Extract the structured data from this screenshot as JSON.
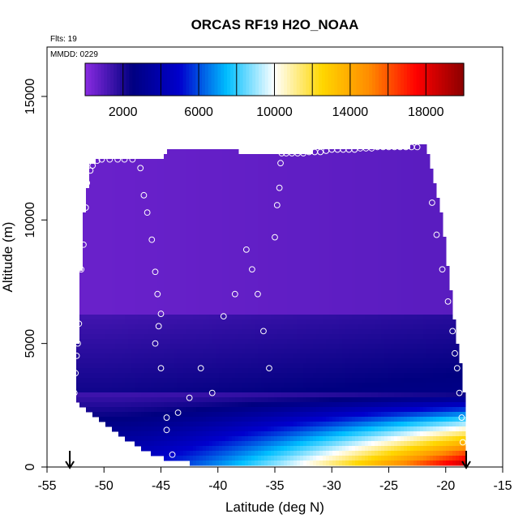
{
  "chart_data": {
    "type": "heatmap",
    "title": "ORCAS RF19 H2O_NOAA",
    "xlabel": "Latitude (deg N)",
    "ylabel": "Altitude (m)",
    "annotations": [
      "Flts: 19",
      "MMDD: 0229"
    ],
    "xlim": [
      -55,
      -15
    ],
    "ylim": [
      0,
      17000
    ],
    "x_ticks": [
      -55,
      -50,
      -45,
      -40,
      -35,
      -30,
      -25,
      -20,
      -15
    ],
    "y_ticks": [
      0,
      5000,
      10000,
      15000
    ],
    "colorbar": {
      "range": [
        0,
        20000
      ],
      "ticks": [
        2000,
        6000,
        10000,
        14000,
        18000
      ],
      "colors": [
        "#8a2be2",
        "#000080",
        "#0000cd",
        "#00bfff",
        "#ffffff",
        "#ffd700",
        "#ff8c00",
        "#ff0000",
        "#8b0000"
      ]
    },
    "domain_outline": [
      [
        -52.5,
        3000
      ],
      [
        -52.0,
        8000
      ],
      [
        -51.7,
        10500
      ],
      [
        -51.2,
        12200
      ],
      [
        -50.3,
        12500
      ],
      [
        -45.0,
        12500
      ],
      [
        -44.5,
        12800
      ],
      [
        -40.0,
        12800
      ],
      [
        -35.0,
        12700
      ],
      [
        -30.0,
        12800
      ],
      [
        -25.0,
        12900
      ],
      [
        -21.8,
        13000
      ],
      [
        -21.2,
        12000
      ],
      [
        -20.3,
        10000
      ],
      [
        -19.8,
        8000
      ],
      [
        -19.4,
        6500
      ],
      [
        -19.0,
        5000
      ],
      [
        -18.6,
        4000
      ],
      [
        -18.3,
        2500
      ],
      [
        -18.2,
        0
      ],
      [
        -35.5,
        0
      ],
      [
        -40.0,
        0
      ],
      [
        -44.5,
        300
      ],
      [
        -47.0,
        800
      ],
      [
        -50.0,
        1800
      ],
      [
        -52.5,
        2700
      ]
    ],
    "profiles": [
      {
        "x": [
          -52.6,
          -52.5,
          -52.4,
          -52.3,
          -52.2,
          -52.0,
          -51.8,
          -51.6,
          -51.5,
          -51.2,
          -51.0,
          -50.6,
          -50.2
        ],
        "y": [
          3000,
          3800,
          4500,
          5000,
          5800,
          8000,
          9000,
          10500,
          11500,
          12000,
          12200,
          12400,
          12450
        ]
      },
      {
        "x": [
          -49.5,
          -48.8,
          -48.2,
          -47.5,
          -46.8,
          -46.5,
          -46.2,
          -45.8,
          -45.5,
          -45.3,
          -45.0,
          -45.2,
          -45.5,
          -45.0,
          -44.5,
          -44.0
        ],
        "y": [
          12450,
          12450,
          12450,
          12450,
          12100,
          11000,
          10300,
          9200,
          7900,
          7000,
          6200,
          5700,
          5000,
          4000,
          2000,
          500
        ]
      },
      {
        "x": [
          -44.5,
          -43.5,
          -42.5,
          -41.5,
          -40.5,
          -39.5,
          -38.5,
          -37.5,
          -37.0,
          -36.5,
          -36.0,
          -35.5
        ],
        "y": [
          1500,
          2200,
          2800,
          4000,
          3000,
          6100,
          7000,
          8800,
          8000,
          7000,
          5500,
          4000
        ]
      },
      {
        "x": [
          -35.0,
          -34.8,
          -34.6,
          -34.5,
          -34.4,
          -34.0,
          -33.5,
          -33.0,
          -32.5,
          -32.0,
          -31.5,
          -31.0,
          -30.5,
          -30.0,
          -29.5,
          -29.0,
          -28.5,
          -28.0,
          -27.5,
          -27.0,
          -26.5,
          -26.0,
          -25.5,
          -25.0,
          -24.5,
          -24.0,
          -23.5,
          -23.0,
          -22.5
        ],
        "y": [
          9300,
          10600,
          11300,
          12300,
          12700,
          12700,
          12700,
          12700,
          12700,
          12750,
          12750,
          12750,
          12800,
          12850,
          12850,
          12850,
          12850,
          12850,
          12900,
          12900,
          12900,
          12950,
          12950,
          12950,
          12950,
          12950,
          12950,
          12950,
          12950
        ]
      },
      {
        "x": [
          -21.2,
          -20.8,
          -20.3,
          -19.8,
          -19.4,
          -19.2,
          -19.0,
          -18.8,
          -18.6,
          -18.5
        ],
        "y": [
          10700,
          9400,
          8000,
          6700,
          5500,
          4600,
          4000,
          3000,
          2000,
          1000
        ]
      }
    ],
    "markers": [
      {
        "x": -53.0,
        "label": "↓"
      },
      {
        "x": -18.2,
        "label": "↓"
      }
    ]
  },
  "ui": {
    "flts": "Flts: 19",
    "mmdd": "MMDD: 0229"
  }
}
